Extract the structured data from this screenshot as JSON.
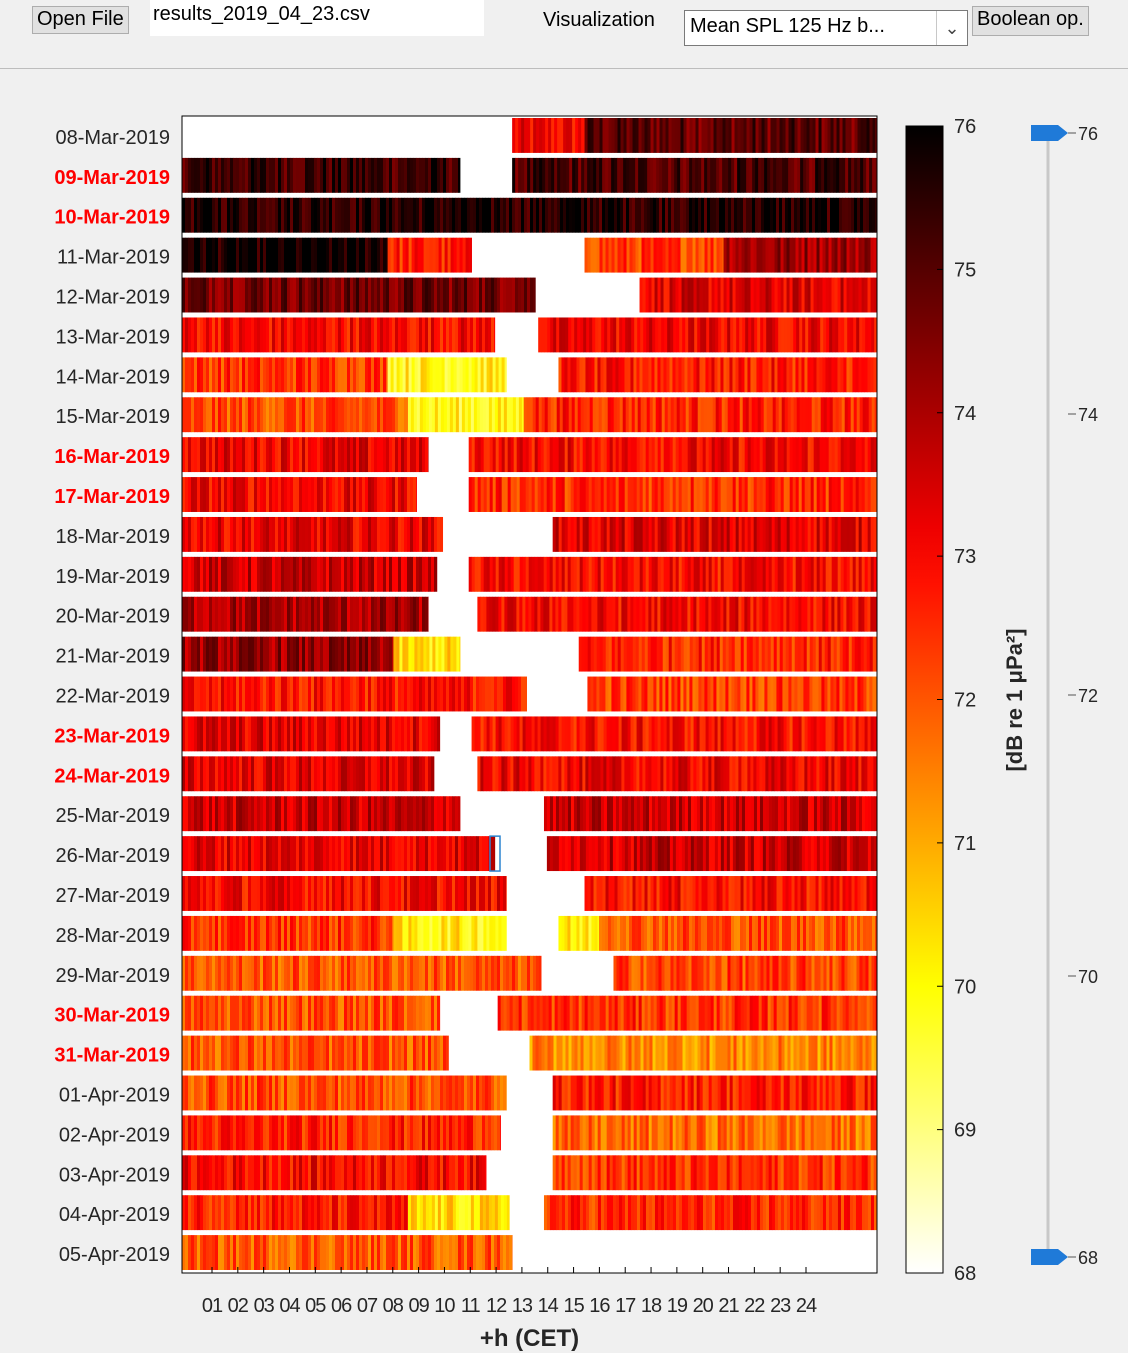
{
  "toolbar": {
    "open_file_label": "Open File",
    "file_name": "results_2019_04_23.csv",
    "visualization_label": "Visualization",
    "visualization_value": "Mean SPL 125 Hz b...",
    "boolean_label": "Boolean op."
  },
  "chart_data": {
    "type": "heatmap",
    "xlabel": "+h (CET)",
    "x_ticks": [
      "01",
      "02",
      "03",
      "04",
      "05",
      "06",
      "07",
      "08",
      "09",
      "10",
      "11",
      "12",
      "13",
      "14",
      "15",
      "16",
      "17",
      "18",
      "19",
      "20",
      "21",
      "22",
      "23",
      "24"
    ],
    "x_range_hours": [
      0,
      24
    ],
    "colorbar_label": "[dB re 1 μPa²]",
    "colorbar_range": [
      68,
      76
    ],
    "colorbar_ticks": [
      "68",
      "69",
      "70",
      "71",
      "72",
      "73",
      "74",
      "75",
      "76"
    ],
    "colormap": "hot (white–yellow–red–black)",
    "slider_range": [
      68,
      76
    ],
    "slider_ticks": [
      "68",
      "70",
      "72",
      "74",
      "76"
    ],
    "weekend_color": "#ff0000",
    "rows": [
      {
        "date": "08-Mar-2019",
        "weekend": false,
        "segments": [
          [
            11.4,
            13.9,
            73.0
          ],
          [
            13.9,
            24,
            74.9
          ]
        ]
      },
      {
        "date": "09-Mar-2019",
        "weekend": true,
        "segments": [
          [
            0,
            9.6,
            75.3
          ],
          [
            11.4,
            24,
            75.1
          ]
        ]
      },
      {
        "date": "10-Mar-2019",
        "weekend": true,
        "segments": [
          [
            0,
            24,
            75.6
          ]
        ]
      },
      {
        "date": "11-Mar-2019",
        "weekend": false,
        "segments": [
          [
            0,
            7.1,
            75.8
          ],
          [
            7.1,
            10.0,
            72.6
          ],
          [
            13.9,
            18.7,
            72.3
          ],
          [
            18.7,
            24,
            74.2
          ]
        ]
      },
      {
        "date": "12-Mar-2019",
        "weekend": false,
        "segments": [
          [
            0,
            12.2,
            74.7
          ],
          [
            15.8,
            24,
            73.3
          ]
        ]
      },
      {
        "date": "13-Mar-2019",
        "weekend": false,
        "segments": [
          [
            0,
            10.8,
            73.0
          ],
          [
            12.3,
            24,
            73.1
          ]
        ]
      },
      {
        "date": "14-Mar-2019",
        "weekend": false,
        "segments": [
          [
            0,
            7.1,
            72.4
          ],
          [
            7.1,
            11.2,
            70.0
          ],
          [
            13.0,
            24,
            72.7
          ]
        ]
      },
      {
        "date": "15-Mar-2019",
        "weekend": false,
        "segments": [
          [
            0,
            7.8,
            72.1
          ],
          [
            7.8,
            11.8,
            69.9
          ],
          [
            11.8,
            24,
            72.6
          ]
        ]
      },
      {
        "date": "16-Mar-2019",
        "weekend": true,
        "segments": [
          [
            0,
            8.5,
            73.2
          ],
          [
            9.9,
            24,
            73.0
          ]
        ]
      },
      {
        "date": "17-Mar-2019",
        "weekend": true,
        "segments": [
          [
            0,
            8.1,
            73.1
          ],
          [
            9.9,
            24,
            72.5
          ]
        ]
      },
      {
        "date": "18-Mar-2019",
        "weekend": false,
        "segments": [
          [
            0,
            9.0,
            73.2
          ],
          [
            12.8,
            24,
            73.3
          ]
        ]
      },
      {
        "date": "19-Mar-2019",
        "weekend": false,
        "segments": [
          [
            0,
            8.8,
            73.6
          ],
          [
            9.9,
            24,
            72.9
          ]
        ]
      },
      {
        "date": "20-Mar-2019",
        "weekend": false,
        "segments": [
          [
            0,
            8.5,
            74.0
          ],
          [
            10.2,
            24,
            73.0
          ]
        ]
      },
      {
        "date": "21-Mar-2019",
        "weekend": false,
        "segments": [
          [
            0,
            7.3,
            74.2
          ],
          [
            7.3,
            9.6,
            70.3
          ],
          [
            13.7,
            24,
            72.6
          ]
        ]
      },
      {
        "date": "22-Mar-2019",
        "weekend": false,
        "segments": [
          [
            0,
            11.9,
            72.8
          ],
          [
            14.0,
            24,
            72.3
          ]
        ]
      },
      {
        "date": "23-Mar-2019",
        "weekend": true,
        "segments": [
          [
            0,
            8.9,
            73.3
          ],
          [
            10.0,
            24,
            72.9
          ]
        ]
      },
      {
        "date": "24-Mar-2019",
        "weekend": true,
        "segments": [
          [
            0,
            8.7,
            73.3
          ],
          [
            10.2,
            24,
            73.1
          ]
        ]
      },
      {
        "date": "25-Mar-2019",
        "weekend": false,
        "segments": [
          [
            0,
            9.6,
            73.6
          ],
          [
            12.5,
            24,
            73.6
          ]
        ]
      },
      {
        "date": "26-Mar-2019",
        "weekend": false,
        "segments": [
          [
            0,
            10.8,
            73.3
          ],
          [
            12.6,
            24,
            73.6
          ]
        ]
      },
      {
        "date": "27-Mar-2019",
        "weekend": false,
        "segments": [
          [
            0,
            11.2,
            73.0
          ],
          [
            13.9,
            24,
            72.9
          ]
        ]
      },
      {
        "date": "28-Mar-2019",
        "weekend": false,
        "segments": [
          [
            0,
            7.3,
            72.4
          ],
          [
            7.3,
            11.2,
            70.1
          ],
          [
            13.0,
            14.4,
            70.1
          ],
          [
            14.4,
            24,
            72.1
          ]
        ]
      },
      {
        "date": "29-Mar-2019",
        "weekend": false,
        "segments": [
          [
            0,
            12.4,
            72.0
          ],
          [
            14.9,
            24,
            72.2
          ]
        ]
      },
      {
        "date": "30-Mar-2019",
        "weekend": true,
        "segments": [
          [
            0,
            8.9,
            72.1
          ],
          [
            10.9,
            24,
            72.4
          ]
        ]
      },
      {
        "date": "31-Mar-2019",
        "weekend": true,
        "segments": [
          [
            0,
            9.2,
            72.0
          ],
          [
            12.0,
            24,
            71.4
          ]
        ]
      },
      {
        "date": "01-Apr-2019",
        "weekend": false,
        "segments": [
          [
            0,
            11.2,
            72.1
          ],
          [
            12.8,
            24,
            72.7
          ]
        ]
      },
      {
        "date": "02-Apr-2019",
        "weekend": false,
        "segments": [
          [
            0,
            11.0,
            72.6
          ],
          [
            12.8,
            24,
            71.7
          ]
        ]
      },
      {
        "date": "03-Apr-2019",
        "weekend": false,
        "segments": [
          [
            0,
            10.5,
            73.0
          ],
          [
            12.8,
            24,
            72.4
          ]
        ]
      },
      {
        "date": "04-Apr-2019",
        "weekend": false,
        "segments": [
          [
            0,
            7.8,
            72.7
          ],
          [
            7.8,
            11.3,
            70.3
          ],
          [
            12.5,
            24,
            72.5
          ]
        ]
      },
      {
        "date": "05-Apr-2019",
        "weekend": false,
        "segments": [
          [
            0,
            11.4,
            72.0
          ]
        ]
      }
    ]
  }
}
